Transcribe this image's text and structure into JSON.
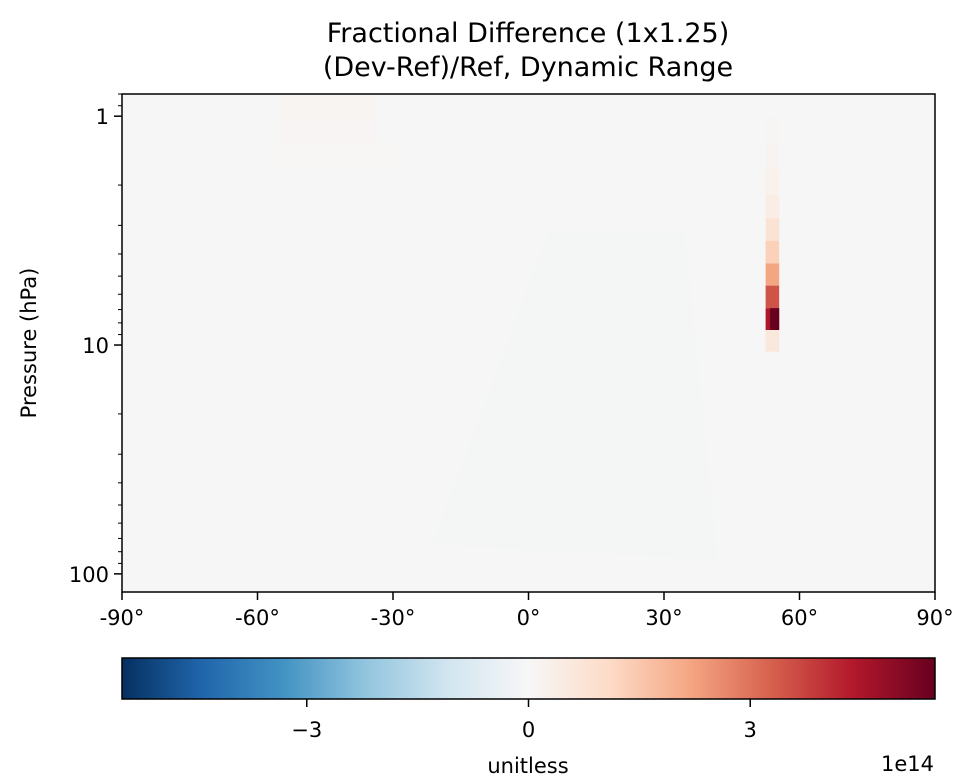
{
  "chart_data": {
    "type": "heatmap",
    "title": "Fractional Difference (1x1.25)",
    "subtitle": "(Dev-Ref)/Ref, Dynamic Range",
    "xlabel": "",
    "ylabel": "Pressure (hPa)",
    "xlim": [
      -90,
      90
    ],
    "ylim": [
      120,
      0.8
    ],
    "y_scale": "log",
    "x_ticks": [
      {
        "value": -90,
        "label": "-90°"
      },
      {
        "value": -60,
        "label": "-60°"
      },
      {
        "value": -30,
        "label": "-30°"
      },
      {
        "value": 0,
        "label": "0°"
      },
      {
        "value": 30,
        "label": "30°"
      },
      {
        "value": 60,
        "label": "60°"
      },
      {
        "value": 90,
        "label": "90°"
      }
    ],
    "y_ticks": [
      {
        "value": 1,
        "label": "1"
      },
      {
        "value": 10,
        "label": "10"
      },
      {
        "value": 100,
        "label": "100"
      }
    ],
    "colorbar": {
      "colormap": "RdBu_r",
      "range": [
        -5.5,
        5.5
      ],
      "ticks": [
        {
          "value": -3,
          "label": "−3"
        },
        {
          "value": 0,
          "label": "0"
        },
        {
          "value": 3,
          "label": "3"
        }
      ],
      "label": "unitless",
      "offset_text": "1e14"
    },
    "background_value": 0,
    "cells": [
      {
        "lon": [
          -55,
          -34
        ],
        "p": [
          0.8,
          1.0
        ],
        "value": 0.12
      },
      {
        "lon": [
          -55,
          -34
        ],
        "p": [
          1.0,
          1.3
        ],
        "value": 0.1
      },
      {
        "lon": [
          -55,
          -30
        ],
        "p": [
          1.3,
          1.7
        ],
        "value": 0.05
      },
      {
        "lon": [
          52.5,
          55.5
        ],
        "p": [
          1.3,
          1.7
        ],
        "value": 0.15
      },
      {
        "lon": [
          52.5,
          55.5
        ],
        "p": [
          1.7,
          2.2
        ],
        "value": 0.25
      },
      {
        "lon": [
          52.5,
          55.5
        ],
        "p": [
          2.2,
          2.8
        ],
        "value": 0.4
      },
      {
        "lon": [
          52.5,
          55.5
        ],
        "p": [
          2.8,
          3.5
        ],
        "value": 0.8
      },
      {
        "lon": [
          52.5,
          55.5
        ],
        "p": [
          3.5,
          4.4
        ],
        "value": 1.3
      },
      {
        "lon": [
          52.5,
          55.5
        ],
        "p": [
          4.4,
          5.5
        ],
        "value": 2.2
      },
      {
        "lon": [
          52.5,
          55.5
        ],
        "p": [
          5.5,
          6.9
        ],
        "value": 3.5
      },
      {
        "lon": [
          52.5,
          55.5
        ],
        "p": [
          6.9,
          8.6
        ],
        "value": 4.5
      },
      {
        "lon": [
          53.5,
          55.5
        ],
        "p": [
          6.9,
          8.6
        ],
        "value": 5.5
      },
      {
        "lon": [
          52.5,
          55.5
        ],
        "p": [
          8.6,
          10.7
        ],
        "value": 0.6
      },
      {
        "lon": [
          52.5,
          55.5
        ],
        "p": [
          1.0,
          1.3
        ],
        "value": 0.08
      }
    ],
    "grid": false,
    "legend": "none"
  }
}
